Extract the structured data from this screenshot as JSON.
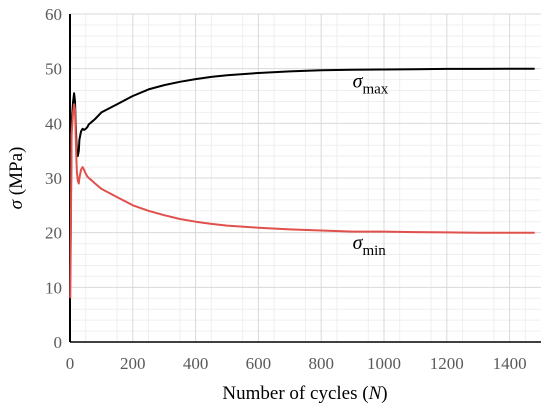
{
  "chart_data": {
    "type": "line",
    "xlabel": {
      "prefix": "Number of cycles (",
      "var": "N",
      "suffix": ")"
    },
    "ylabel": {
      "var": "σ",
      "suffix": " (MPa)"
    },
    "xlim": [
      0,
      1500
    ],
    "ylim": [
      0,
      60
    ],
    "xticks": [
      0,
      200,
      400,
      600,
      800,
      1000,
      1200,
      1400
    ],
    "yticks": [
      0,
      10,
      20,
      30,
      40,
      50,
      60
    ],
    "grid": {
      "major": true,
      "minor": true
    },
    "series": [
      {
        "name": "σmax",
        "label": {
          "main": "σ",
          "sub": "max"
        },
        "color": "#000000",
        "x": [
          1,
          5,
          10,
          13,
          16,
          18,
          20,
          22,
          25,
          28,
          30,
          35,
          40,
          45,
          50,
          55,
          60,
          70,
          80,
          100,
          150,
          200,
          250,
          300,
          350,
          400,
          450,
          500,
          600,
          700,
          800,
          900,
          1000,
          1100,
          1200,
          1300,
          1400,
          1480
        ],
        "y": [
          12,
          40,
          44,
          45.5,
          44,
          40,
          37,
          35,
          34,
          35,
          37,
          38.5,
          39,
          38.8,
          39,
          39.3,
          39.8,
          40.3,
          40.8,
          42,
          43.5,
          45,
          46.2,
          47,
          47.6,
          48.1,
          48.5,
          48.8,
          49.2,
          49.5,
          49.7,
          49.8,
          49.85,
          49.9,
          49.95,
          49.95,
          50,
          50
        ]
      },
      {
        "name": "σmin",
        "label": {
          "main": "σ",
          "sub": "min"
        },
        "color": "#e0504c",
        "x": [
          1,
          5,
          10,
          13,
          16,
          18,
          20,
          22,
          25,
          28,
          30,
          35,
          40,
          45,
          50,
          55,
          60,
          70,
          80,
          100,
          150,
          200,
          250,
          300,
          350,
          400,
          450,
          500,
          600,
          700,
          800,
          900,
          1000,
          1100,
          1200,
          1300,
          1400,
          1480
        ],
        "y": [
          8,
          38,
          42,
          43.5,
          42.5,
          38,
          34,
          31,
          29.5,
          29,
          30,
          31.5,
          32,
          31.5,
          30.8,
          30.3,
          30,
          29.5,
          29,
          28,
          26.5,
          25,
          24,
          23.2,
          22.5,
          22,
          21.6,
          21.3,
          20.9,
          20.6,
          20.4,
          20.2,
          20.2,
          20.1,
          20.05,
          20,
          20,
          20
        ]
      }
    ]
  }
}
